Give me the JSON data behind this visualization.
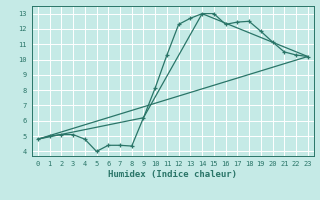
{
  "xlabel": "Humidex (Indice chaleur)",
  "xlim": [
    -0.5,
    23.5
  ],
  "ylim": [
    3.7,
    13.5
  ],
  "xticks": [
    0,
    1,
    2,
    3,
    4,
    5,
    6,
    7,
    8,
    9,
    10,
    11,
    12,
    13,
    14,
    15,
    16,
    17,
    18,
    19,
    20,
    21,
    22,
    23
  ],
  "yticks": [
    4,
    5,
    6,
    7,
    8,
    9,
    10,
    11,
    12,
    13
  ],
  "bg_color": "#c5eae6",
  "grid_color": "#ffffff",
  "line_color": "#2a7568",
  "curve1_x": [
    0,
    1,
    2,
    3,
    4,
    5,
    6,
    7,
    8,
    9,
    10,
    11,
    12,
    13,
    14,
    15,
    16,
    17,
    18,
    19,
    20,
    21,
    22,
    23
  ],
  "curve1_y": [
    4.8,
    5.0,
    5.1,
    5.1,
    4.8,
    4.0,
    4.4,
    4.4,
    4.35,
    6.2,
    8.15,
    10.3,
    12.3,
    12.7,
    13.0,
    13.0,
    12.3,
    12.45,
    12.5,
    11.85,
    11.15,
    10.5,
    10.3,
    10.2
  ],
  "curve2_x": [
    0,
    23
  ],
  "curve2_y": [
    4.8,
    10.2
  ],
  "curve3_x": [
    0,
    9,
    14,
    23
  ],
  "curve3_y": [
    4.8,
    6.2,
    13.0,
    10.2
  ],
  "tick_fontsize": 5.0,
  "xlabel_fontsize": 6.5,
  "lw": 0.9,
  "marker_size": 3.5
}
